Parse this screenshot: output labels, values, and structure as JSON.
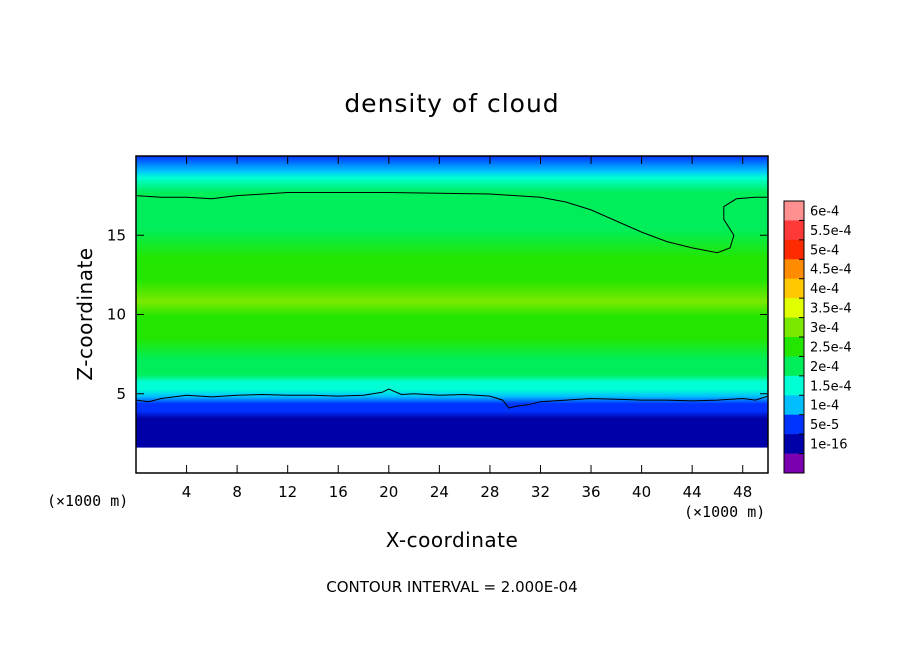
{
  "chart_data": {
    "type": "heatmap",
    "title": "density of cloud",
    "xlabel": "X-coordinate",
    "ylabel": "Z-coordinate",
    "x_unit": "(×1000 m)",
    "y_unit": "(×1000 m)",
    "xlim": [
      0,
      50
    ],
    "ylim": [
      0,
      20
    ],
    "x_ticks": [
      4,
      8,
      12,
      16,
      20,
      24,
      28,
      32,
      36,
      40,
      44,
      48
    ],
    "y_ticks": [
      5,
      10,
      15
    ],
    "contour_interval_label": "CONTOUR INTERVAL = 2.000E-04",
    "colorbar": {
      "labels": [
        "6e-4",
        "5.5e-4",
        "5e-4",
        "4.5e-4",
        "4e-4",
        "3.5e-4",
        "3e-4",
        "2.5e-4",
        "2e-4",
        "1.5e-4",
        "1e-4",
        "5e-5",
        "1e-16"
      ],
      "values": [
        0.0006,
        0.00055,
        0.0005,
        0.00045,
        0.0004,
        0.00035,
        0.0003,
        0.00025,
        0.0002,
        0.00015,
        0.0001,
        5e-05,
        1e-16
      ],
      "colors": [
        "#ff9090",
        "#ff3838",
        "#ff2a00",
        "#ff8c00",
        "#ffc800",
        "#e1ff00",
        "#7be800",
        "#23e600",
        "#00ee5a",
        "#00ffd4",
        "#00bfff",
        "#0033ff",
        "#0000a8",
        "#7a00b0"
      ]
    },
    "field_profile": {
      "z": [
        1.6,
        2.0,
        2.5,
        3.0,
        3.5,
        4.0,
        4.5,
        5.0,
        6.0,
        7.5,
        9.0,
        10.0,
        11.5,
        13.0,
        15.0,
        16.5,
        17.5,
        18.5,
        19.0,
        20.0
      ],
      "density": [
        1e-16,
        3e-05,
        6e-05,
        9e-05,
        0.00013,
        0.00016,
        0.00019,
        0.00021,
        0.00023,
        0.00025,
        0.00028,
        0.0003,
        0.00028,
        0.00025,
        0.00023,
        0.000215,
        0.0002,
        0.00015,
        0.00012,
        8e-05
      ]
    },
    "contour_lines": [
      {
        "level": 0.0002,
        "x": [
          0,
          2,
          4,
          6,
          8,
          12,
          16,
          20,
          24,
          28,
          32,
          34,
          36,
          38,
          40,
          42,
          44,
          46,
          47,
          47.3,
          46.5,
          46.5,
          47.5,
          49,
          50
        ],
        "z": [
          17.5,
          17.4,
          17.4,
          17.3,
          17.5,
          17.7,
          17.7,
          17.7,
          17.65,
          17.6,
          17.4,
          17.1,
          16.6,
          15.9,
          15.2,
          14.6,
          14.2,
          13.9,
          14.2,
          15.0,
          16.0,
          16.8,
          17.3,
          17.4,
          17.4
        ]
      },
      {
        "level": 0.0002,
        "x": [
          0,
          1,
          2,
          4,
          6,
          8,
          10,
          12,
          14,
          16,
          18,
          19.5,
          20,
          21,
          22,
          24,
          26,
          28,
          29,
          29.5,
          30,
          31,
          32,
          34,
          36,
          38,
          40,
          42,
          44,
          46,
          48,
          49,
          50
        ],
        "z": [
          4.6,
          4.5,
          4.7,
          4.9,
          4.8,
          4.9,
          4.95,
          4.9,
          4.9,
          4.85,
          4.9,
          5.1,
          5.3,
          4.95,
          5.0,
          4.9,
          4.95,
          4.85,
          4.6,
          4.1,
          4.2,
          4.3,
          4.5,
          4.6,
          4.7,
          4.65,
          4.6,
          4.6,
          4.55,
          4.6,
          4.7,
          4.6,
          4.85
        ]
      }
    ]
  }
}
